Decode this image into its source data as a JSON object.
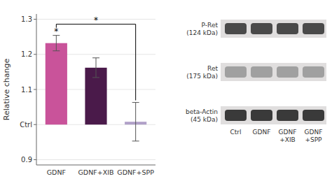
{
  "chart_data": [
    {
      "type": "bar",
      "categories": [
        "GDNF",
        "GDNF+XIB",
        "GDNF+SPP"
      ],
      "values": [
        1.232,
        1.162,
        1.008
      ],
      "errors": [
        0.022,
        0.028,
        0.055
      ],
      "baseline": 1.0,
      "colors": [
        "#c9539a",
        "#4a1a4a",
        "#b0a0c8"
      ],
      "ylabel": "Relative change",
      "ylim": [
        0.885,
        1.315
      ],
      "yticks": [
        0.9,
        {
          "value": 1.0,
          "label": "Ctrl"
        },
        1.1,
        1.2,
        1.3
      ],
      "annotations": [
        {
          "text": "*",
          "category": "GDNF"
        },
        {
          "text": "*",
          "from": "GDNF",
          "to": "GDNF+SPP"
        }
      ]
    },
    {
      "type": "blot",
      "categories": [
        "Ctrl",
        "GDNF",
        "GDNF\n+XIB",
        "GDNF\n+SPP"
      ],
      "annotations": [
        "P-Ret\n(124 kDa)",
        "Ret\n(175 kDa)",
        "beta-Actin\n(45 kDa)"
      ]
    }
  ]
}
